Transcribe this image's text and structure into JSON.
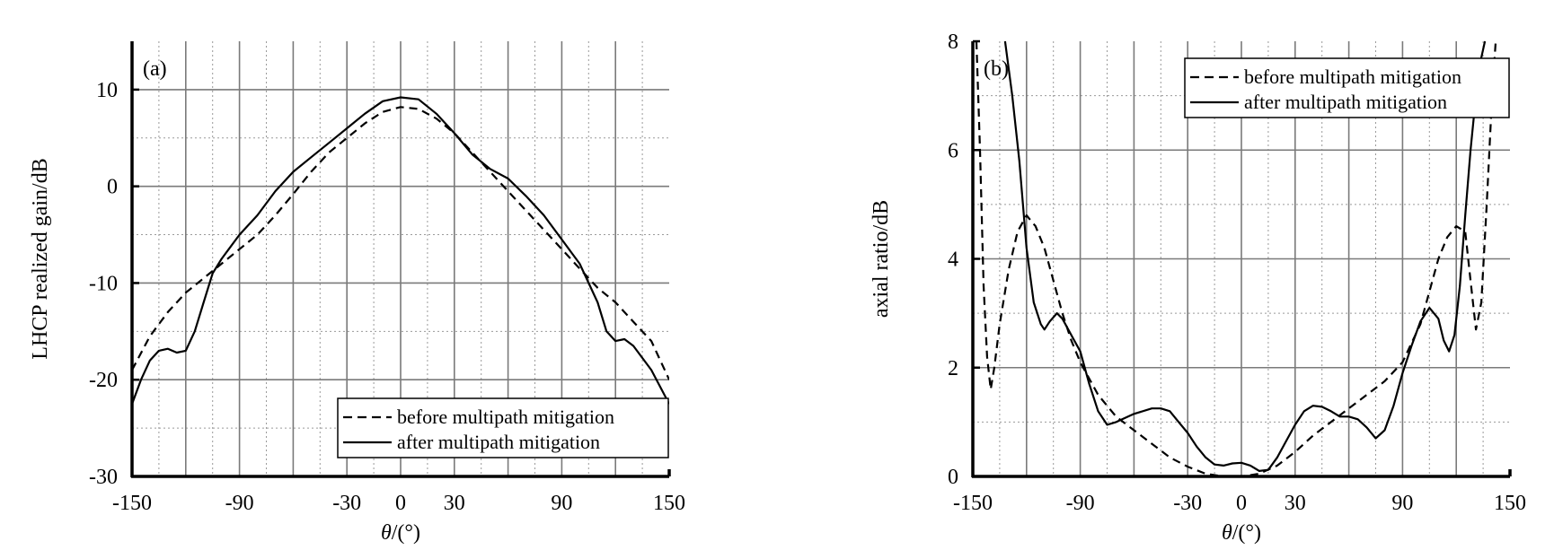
{
  "chart_data": [
    {
      "type": "line",
      "panel_label": "(a)",
      "xlabel_symbol": "θ",
      "xlabel_unit": "/(°)",
      "ylabel": "LHCP realized gain/dB",
      "xlim": [
        -150,
        150
      ],
      "ylim": [
        -30,
        15
      ],
      "x_ticks": [
        -150,
        -90,
        -30,
        0,
        30,
        90,
        150
      ],
      "y_ticks": [
        -30,
        -20,
        -10,
        0,
        10
      ],
      "major_x_grid": [
        -120,
        -90,
        -60,
        -30,
        0,
        30,
        60,
        90,
        120
      ],
      "minor_x_grid": [
        -135,
        -105,
        -75,
        -45,
        -15,
        15,
        45,
        75,
        105,
        135
      ],
      "major_y_grid": [
        -20,
        -10,
        0,
        10
      ],
      "minor_y_grid": [
        -25,
        -15,
        -5,
        5
      ],
      "grid": true,
      "legend_position": "bottom-right",
      "series": [
        {
          "name": "before multipath mitigation",
          "style": "dashed",
          "x": [
            -150,
            -140,
            -130,
            -120,
            -110,
            -100,
            -90,
            -80,
            -70,
            -60,
            -50,
            -40,
            -30,
            -20,
            -10,
            0,
            10,
            20,
            30,
            40,
            50,
            60,
            70,
            80,
            90,
            100,
            110,
            120,
            130,
            140,
            150
          ],
          "y": [
            -19,
            -15.5,
            -13,
            -11,
            -9.5,
            -8,
            -6.5,
            -5,
            -3,
            -0.8,
            1.5,
            3.5,
            5,
            6.5,
            7.7,
            8.2,
            8,
            7,
            5.5,
            3.5,
            1.5,
            -0.5,
            -2.5,
            -4.5,
            -6.5,
            -8.5,
            -10.5,
            -12,
            -14,
            -16,
            -20
          ]
        },
        {
          "name": "after multipath mitigation",
          "style": "solid",
          "x": [
            -150,
            -145,
            -140,
            -135,
            -130,
            -125,
            -120,
            -115,
            -110,
            -105,
            -100,
            -90,
            -80,
            -70,
            -60,
            -50,
            -40,
            -30,
            -20,
            -10,
            0,
            10,
            20,
            30,
            40,
            50,
            60,
            70,
            80,
            90,
            100,
            105,
            110,
            115,
            120,
            125,
            130,
            140,
            150
          ],
          "y": [
            -22.5,
            -20,
            -18,
            -17,
            -16.8,
            -17.2,
            -17,
            -15,
            -12,
            -9,
            -7.5,
            -5,
            -3,
            -0.5,
            1.5,
            3,
            4.5,
            6,
            7.5,
            8.8,
            9.2,
            9,
            7.5,
            5.5,
            3.3,
            1.8,
            0.8,
            -1,
            -3,
            -5.5,
            -8,
            -10,
            -12,
            -15,
            -16,
            -15.8,
            -16.5,
            -19,
            -22.5
          ]
        }
      ]
    },
    {
      "type": "line",
      "panel_label": "(b)",
      "xlabel_symbol": "θ",
      "xlabel_unit": "/(°)",
      "ylabel": "axial ratio/dB",
      "xlim": [
        -150,
        150
      ],
      "ylim": [
        0,
        8
      ],
      "x_ticks": [
        -150,
        -90,
        -30,
        0,
        30,
        90,
        150
      ],
      "y_ticks": [
        0,
        2,
        4,
        6,
        8
      ],
      "major_x_grid": [
        -120,
        -90,
        -60,
        -30,
        0,
        30,
        60,
        90,
        120
      ],
      "minor_x_grid": [
        -135,
        -105,
        -75,
        -45,
        -15,
        15,
        45,
        75,
        105,
        135
      ],
      "major_y_grid": [
        2,
        4,
        6
      ],
      "minor_y_grid": [
        1,
        3,
        5,
        7
      ],
      "grid": true,
      "legend_position": "top-right",
      "series": [
        {
          "name": "before multipath mitigation",
          "style": "dashed",
          "x": [
            -148,
            -146,
            -144,
            -142,
            -140,
            -138,
            -135,
            -130,
            -125,
            -120,
            -115,
            -110,
            -105,
            -100,
            -95,
            -90,
            -80,
            -70,
            -60,
            -50,
            -40,
            -30,
            -20,
            -10,
            0,
            10,
            20,
            30,
            40,
            50,
            60,
            70,
            80,
            90,
            100,
            105,
            110,
            115,
            120,
            125,
            128,
            131,
            134,
            137,
            140,
            142
          ],
          "y": [
            8,
            6,
            3.5,
            2.2,
            1.6,
            2.0,
            2.8,
            3.8,
            4.5,
            4.8,
            4.6,
            4.2,
            3.6,
            3.0,
            2.5,
            2.1,
            1.5,
            1.1,
            0.85,
            0.6,
            0.35,
            0.18,
            0.05,
            0.0,
            0.0,
            0.05,
            0.2,
            0.45,
            0.75,
            1.0,
            1.25,
            1.5,
            1.75,
            2.1,
            2.8,
            3.4,
            4.0,
            4.4,
            4.6,
            4.5,
            3.6,
            2.7,
            3.2,
            5.0,
            7.0,
            8
          ]
        },
        {
          "name": "after multipath mitigation",
          "style": "solid",
          "x": [
            -132,
            -128,
            -124,
            -120,
            -116,
            -112,
            -110,
            -107,
            -103,
            -100,
            -95,
            -90,
            -85,
            -80,
            -75,
            -70,
            -60,
            -50,
            -45,
            -40,
            -35,
            -30,
            -25,
            -20,
            -15,
            -10,
            -5,
            0,
            5,
            10,
            15,
            20,
            25,
            30,
            35,
            40,
            45,
            50,
            55,
            60,
            65,
            70,
            75,
            80,
            85,
            90,
            95,
            100,
            105,
            110,
            113,
            116,
            119,
            122,
            125,
            128,
            131,
            134,
            136
          ],
          "y": [
            8,
            7,
            5.8,
            4.2,
            3.2,
            2.8,
            2.7,
            2.85,
            3.0,
            2.9,
            2.6,
            2.3,
            1.7,
            1.2,
            0.95,
            1.0,
            1.15,
            1.25,
            1.25,
            1.2,
            1.0,
            0.8,
            0.55,
            0.35,
            0.22,
            0.2,
            0.24,
            0.25,
            0.2,
            0.1,
            0.12,
            0.35,
            0.65,
            0.95,
            1.2,
            1.3,
            1.28,
            1.2,
            1.1,
            1.1,
            1.05,
            0.9,
            0.7,
            0.85,
            1.3,
            1.9,
            2.4,
            2.85,
            3.1,
            2.9,
            2.5,
            2.3,
            2.6,
            3.5,
            4.8,
            6.0,
            7.0,
            7.7,
            8
          ]
        }
      ]
    }
  ]
}
